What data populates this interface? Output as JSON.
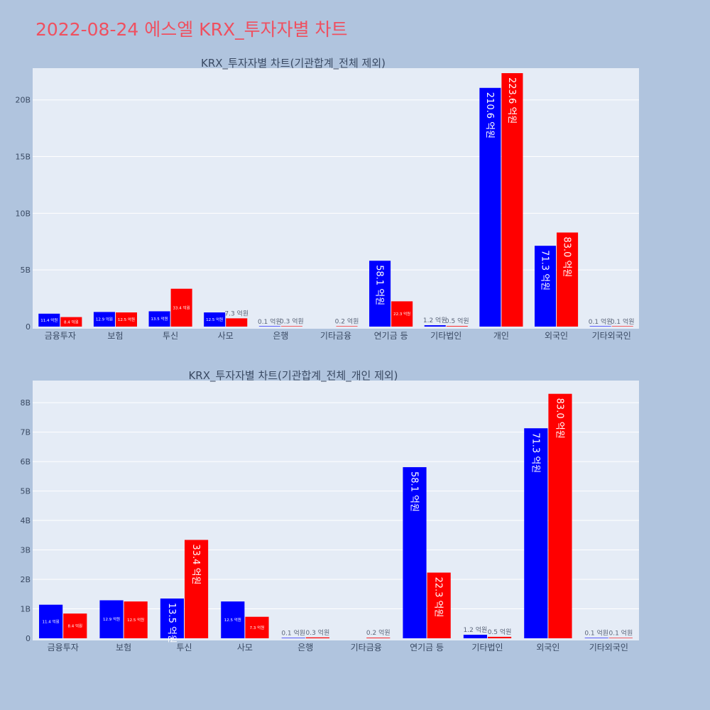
{
  "page": {
    "title": "2022-08-24 에스엘 KRX_투자자별 차트"
  },
  "colors": {
    "background": "#b0c4de",
    "plot_bg": "#e5ecf6",
    "title": "#ef5060",
    "series_blue": "#0000ff",
    "series_red": "#ff0000"
  },
  "chart_data": [
    {
      "type": "bar",
      "title": "KRX_투자자별 차트(기관합계_전체 제외)",
      "categories": [
        "금융투자",
        "보험",
        "투신",
        "사모",
        "은행",
        "기타금융",
        "연기금 등",
        "기타법인",
        "개인",
        "외국인",
        "기타외국인"
      ],
      "series": [
        {
          "color": "#0000ff",
          "values": [
            1.14,
            1.29,
            1.35,
            1.25,
            0.01,
            null,
            5.81,
            0.12,
            21.06,
            7.13,
            0.01
          ],
          "labels": [
            "11.4 억원",
            "12.9 억원",
            "13.5 억원",
            "12.5 억원",
            "0.1 억원",
            "",
            "58.1 억원",
            "1.2 억원",
            "210.6 억원",
            "71.3 억원",
            "0.1 억원"
          ]
        },
        {
          "color": "#ff0000",
          "values": [
            0.84,
            1.25,
            3.34,
            0.73,
            0.03,
            0.02,
            2.23,
            0.05,
            22.36,
            8.3,
            0.01
          ],
          "labels": [
            "8.4 억원",
            "12.5 억원",
            "33.4 억원",
            "7.3 억원",
            "0.3 억원",
            "0.2 억원",
            "22.3 억원",
            "0.5 억원",
            "223.6 억원",
            "83.0 억원",
            "0.1 억원"
          ]
        }
      ],
      "yticks": [
        "0",
        "5B",
        "10B",
        "15B",
        "20B"
      ],
      "ytick_values": [
        0,
        5,
        10,
        15,
        20
      ],
      "ylim": [
        0,
        22.8
      ],
      "grid": true
    },
    {
      "type": "bar",
      "title": "KRX_투자자별 차트(기관합계_전체_개인 제외)",
      "categories": [
        "금융투자",
        "보험",
        "투신",
        "사모",
        "은행",
        "기타금융",
        "연기금 등",
        "기타법인",
        "외국인",
        "기타외국인"
      ],
      "series": [
        {
          "color": "#0000ff",
          "values": [
            1.14,
            1.29,
            1.35,
            1.25,
            0.01,
            null,
            5.81,
            0.12,
            7.13,
            0.01
          ],
          "labels": [
            "11.4 억원",
            "12.9 억원",
            "13.5 억원",
            "12.5 억원",
            "0.1 억원",
            "",
            "58.1 억원",
            "1.2 억원",
            "71.3 억원",
            "0.1 억원"
          ]
        },
        {
          "color": "#ff0000",
          "values": [
            0.84,
            1.25,
            3.34,
            0.73,
            0.03,
            0.02,
            2.23,
            0.05,
            8.3,
            0.01
          ],
          "labels": [
            "8.4 억원",
            "12.5 억원",
            "33.4 억원",
            "7.3 억원",
            "0.3 억원",
            "0.2 억원",
            "22.3 억원",
            "0.5 억원",
            "83.0 억원",
            "0.1 억원"
          ]
        }
      ],
      "yticks": [
        "0",
        "1B",
        "2B",
        "3B",
        "4B",
        "5B",
        "6B",
        "7B",
        "8B"
      ],
      "ytick_values": [
        0,
        1,
        2,
        3,
        4,
        5,
        6,
        7,
        8
      ],
      "ylim": [
        0,
        8.75
      ],
      "grid": true
    }
  ]
}
